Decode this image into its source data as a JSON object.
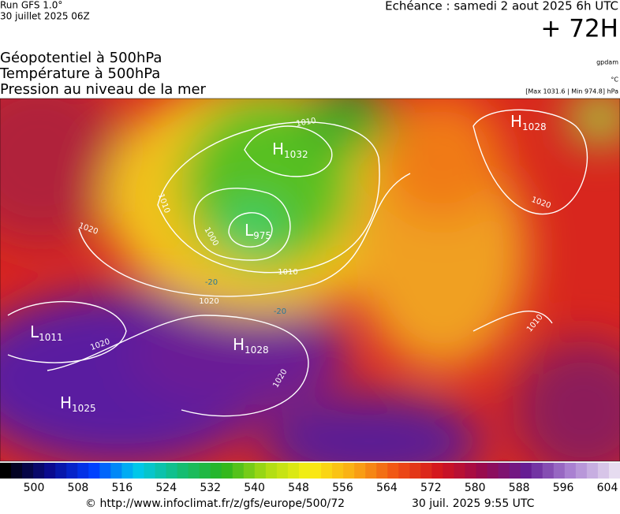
{
  "header": {
    "run": "Run GFS 1.0°",
    "run_date": "30 juillet 2025 06Z",
    "echeance": "Echéance : samedi 2 aout 2025 6h UTC",
    "lead": "+ 72H"
  },
  "fields": [
    "Géopotentiel à 500hPa",
    "Température à 500hPa",
    "Pression au niveau de la mer"
  ],
  "units": [
    "gpdam",
    "°C",
    "[Max 1031.6 | Min 974.8] hPa"
  ],
  "map": {
    "centers": [
      {
        "type": "H",
        "value": "1032"
      },
      {
        "type": "L",
        "value": "975"
      },
      {
        "type": "H",
        "value": "1028"
      },
      {
        "type": "L",
        "value": "1011"
      },
      {
        "type": "H",
        "value": "1025"
      },
      {
        "type": "H",
        "value": "1028"
      }
    ],
    "isobar_labels": [
      "1010",
      "1010",
      "1000",
      "1020",
      "1010",
      "1020",
      "1020",
      "1020",
      "1020",
      "1010"
    ],
    "isotherm_labels": [
      "-20",
      "-20"
    ]
  },
  "colorbar": {
    "ticks": [
      500,
      508,
      516,
      524,
      532,
      540,
      548,
      556,
      564,
      572,
      580,
      588,
      596,
      604
    ]
  },
  "footer": {
    "source": "© http://www.infoclimat.fr/z/gfs/europe/500/72",
    "generated": "30 juil. 2025  9:55 UTC"
  }
}
